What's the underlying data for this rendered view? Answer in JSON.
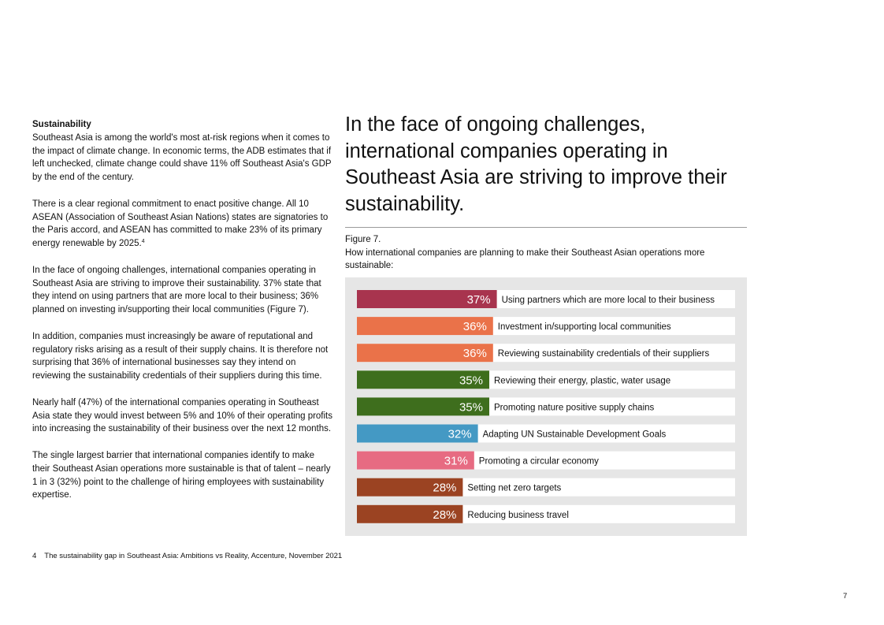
{
  "left": {
    "section_title": "Sustainability",
    "paragraphs": [
      "Southeast Asia is among the world's most at-risk regions when it comes to the impact of climate change. In economic terms, the ADB estimates that if left unchecked, climate change could shave 11% off Southeast Asia's GDP by the end of the century.",
      "There is a clear regional commitment to enact positive change. All 10 ASEAN (Association of Southeast Asian Nations) states are signatories to the Paris accord, and ASEAN has committed to make 23% of its primary energy renewable by 2025.",
      "In the face of ongoing challenges, international companies operating in Southeast Asia are striving to improve their sustainability. 37% state that they intend on using partners that are more local to their business; 36% planned on investing in/supporting their local communities (Figure 7).",
      "In addition, companies must increasingly be aware of reputational and regulatory risks arising as a result of their supply chains. It is therefore not surprising that 36% of international businesses say they intend on reviewing the sustainability credentials of their suppliers during this time.",
      "Nearly half (47%) of the international companies operating in Southeast Asia state they would invest between 5% and 10% of their operating profits into increasing the sustainability of their business over the next 12 months.",
      "The single largest barrier that international companies identify to make their Southeast Asian operations more sustainable is that of talent – nearly 1 in 3 (32%) point to the challenge of hiring employees with sustainability expertise."
    ],
    "footnote_ref": "4"
  },
  "headline": "In the face of ongoing challenges, international companies operating in Southeast Asia are striving to improve their sustainability.",
  "figure": {
    "label": "Figure 7.",
    "caption": "How international companies are planning to make their Southeast Asian operations more sustainable:"
  },
  "chart_data": {
    "type": "bar",
    "orientation": "horizontal",
    "title": "How international companies are planning to make their Southeast Asian operations more sustainable:",
    "unit": "%",
    "xlim": [
      0,
      100
    ],
    "categories": [
      "Using partners which are more local to their business",
      "Investment in/supporting local communities",
      "Reviewing sustainability credentials of their suppliers",
      "Reviewing their energy, plastic, water usage",
      "Promoting nature positive supply chains",
      "Adapting UN Sustainable Development Goals",
      "Promoting a circular economy",
      "Setting net zero targets",
      "Reducing business travel"
    ],
    "values": [
      37,
      36,
      36,
      35,
      35,
      32,
      31,
      28,
      28
    ],
    "value_labels": [
      "37%",
      "36%",
      "36%",
      "35%",
      "35%",
      "32%",
      "31%",
      "28%",
      "28%"
    ],
    "colors": [
      "#a8344e",
      "#ea7249",
      "#ea7249",
      "#3e6e1d",
      "#3e6e1d",
      "#4499c4",
      "#e76b82",
      "#9b4322",
      "#9b4322"
    ]
  },
  "footnote": {
    "number": "4",
    "text": "The sustainability gap in Southeast Asia: Ambitions vs Reality, Accenture, November 2021"
  },
  "page_number": "7"
}
